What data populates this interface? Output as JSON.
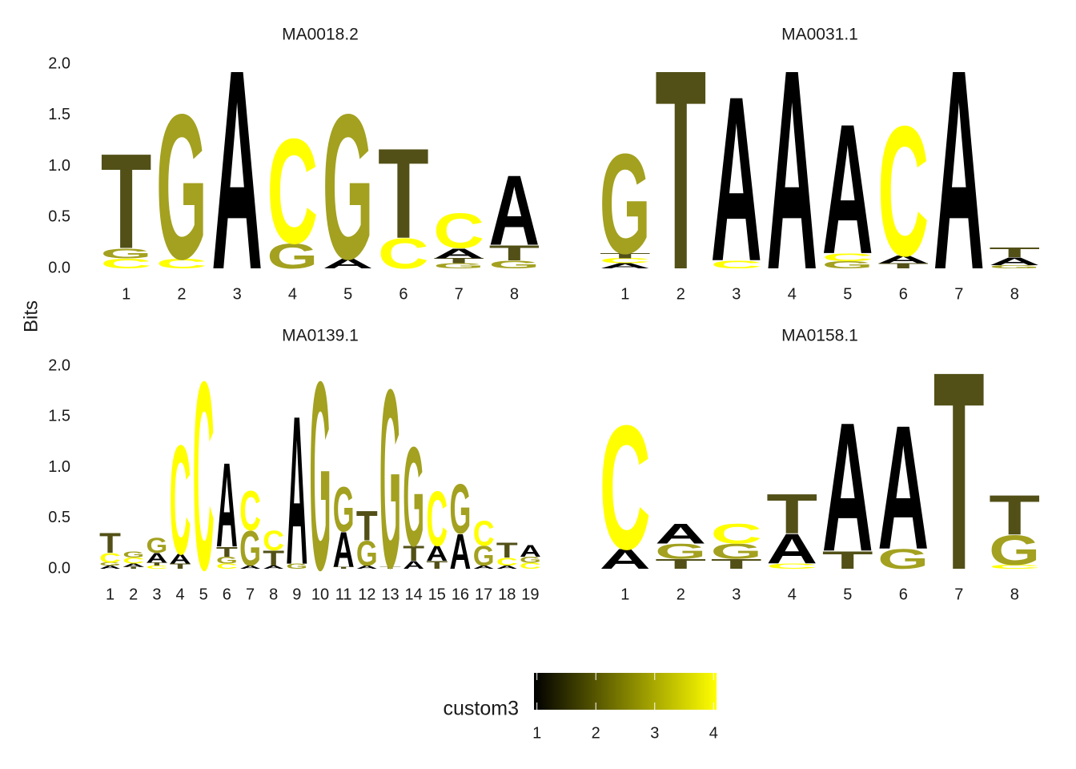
{
  "ylabel": "Bits",
  "legend": {
    "title": "custom3",
    "lim": [
      0.95,
      4.05
    ],
    "ticks": [
      1,
      2,
      3,
      4
    ],
    "colors": [
      "#000000",
      "#ffff00"
    ]
  },
  "chart_data": [
    {
      "type": "logo",
      "title": "MA0018.2",
      "categories": [
        "1",
        "2",
        "3",
        "4",
        "5",
        "6",
        "7",
        "8"
      ],
      "ylim": [
        0,
        2
      ],
      "yticks": [
        {
          "value": 0,
          "label": "0.0"
        },
        {
          "value": 0.5,
          "label": "0.5"
        },
        {
          "value": 1,
          "label": "1.0"
        },
        {
          "value": 1.5,
          "label": "1.5"
        },
        {
          "value": 2,
          "label": "2.0"
        }
      ],
      "series": [
        {
          "name": "A",
          "color": "#000000",
          "values": [
            0,
            0,
            2.0,
            0,
            0.1,
            0,
            0.1,
            0.7
          ]
        },
        {
          "name": "C",
          "color": "#ffff00",
          "values": [
            0.1,
            0.1,
            0,
            1.05,
            0,
            0.3,
            0.35,
            0
          ]
        },
        {
          "name": "G",
          "color": "#a3a11f",
          "values": [
            0.1,
            1.45,
            0,
            0.25,
            1.45,
            0,
            0.05,
            0.08
          ]
        },
        {
          "name": "T",
          "color": "#525017",
          "values": [
            0.95,
            0,
            0,
            0,
            0,
            0.9,
            0.05,
            0.15
          ]
        }
      ]
    },
    {
      "type": "logo",
      "title": "MA0031.1",
      "categories": [
        "1",
        "2",
        "3",
        "4",
        "5",
        "6",
        "7",
        "8"
      ],
      "ylim": [
        0,
        2
      ],
      "series": [
        {
          "name": "A",
          "color": "#000000",
          "values": [
            0.05,
            0,
            1.65,
            2.0,
            1.3,
            0.08,
            2.0,
            0.08
          ]
        },
        {
          "name": "C",
          "color": "#ffff00",
          "values": [
            0.05,
            0,
            0.08,
            0,
            0.08,
            1.3,
            0,
            0
          ]
        },
        {
          "name": "G",
          "color": "#a3a11f",
          "values": [
            1.0,
            0,
            0,
            0,
            0.07,
            0,
            0,
            0.03
          ]
        },
        {
          "name": "T",
          "color": "#525017",
          "values": [
            0.05,
            2.0,
            0,
            0,
            0,
            0.05,
            0,
            0.1
          ]
        }
      ]
    },
    {
      "type": "logo",
      "title": "MA0139.1",
      "categories": [
        "1",
        "2",
        "3",
        "4",
        "5",
        "6",
        "7",
        "8",
        "9",
        "10",
        "11",
        "12",
        "13",
        "14",
        "15",
        "16",
        "17",
        "18",
        "19"
      ],
      "ylim": [
        0,
        2
      ],
      "yticks": [
        {
          "value": 0,
          "label": "0.0"
        },
        {
          "value": 0.5,
          "label": "0.5"
        },
        {
          "value": 1,
          "label": "1.0"
        },
        {
          "value": 1.5,
          "label": "1.5"
        },
        {
          "value": 2,
          "label": "2.0"
        }
      ],
      "series": [
        {
          "name": "A",
          "color": "#000000",
          "values": [
            0.03,
            0.03,
            0.1,
            0.1,
            0,
            0.85,
            0.03,
            0.03,
            1.5,
            0,
            0.35,
            0.03,
            0,
            0.08,
            0.15,
            0.35,
            0.03,
            0.03,
            0.12
          ]
        },
        {
          "name": "C",
          "color": "#ffff00",
          "values": [
            0.1,
            0.06,
            0.03,
            1.1,
            1.9,
            0.05,
            0.4,
            0.2,
            0,
            0,
            0,
            0,
            0,
            0,
            0.55,
            0,
            0.25,
            0.08,
            0.06
          ]
        },
        {
          "name": "G",
          "color": "#a3a11f",
          "values": [
            0.03,
            0.06,
            0.15,
            0,
            0,
            0.07,
            0.35,
            0,
            0.05,
            1.9,
            0.45,
            0.25,
            1.8,
            1.0,
            0,
            0.5,
            0.2,
            0,
            0.06
          ]
        },
        {
          "name": "T",
          "color": "#525017",
          "values": [
            0.2,
            0.02,
            0.03,
            0.05,
            0,
            0.1,
            0,
            0.15,
            0,
            0,
            0.02,
            0.3,
            0.02,
            0.15,
            0.08,
            0,
            0,
            0.15,
            0
          ]
        }
      ]
    },
    {
      "type": "logo",
      "title": "MA0158.1",
      "categories": [
        "1",
        "2",
        "3",
        "4",
        "5",
        "6",
        "7",
        "8"
      ],
      "ylim": [
        0,
        2
      ],
      "series": [
        {
          "name": "A",
          "color": "#000000",
          "values": [
            0.2,
            0.2,
            0,
            0.3,
            1.3,
            1.25,
            0,
            0
          ]
        },
        {
          "name": "C",
          "color": "#ffff00",
          "values": [
            1.25,
            0,
            0.2,
            0.05,
            0,
            0,
            0,
            0.04
          ]
        },
        {
          "name": "G",
          "color": "#a3a11f",
          "values": [
            0,
            0.15,
            0.15,
            0,
            0,
            0.2,
            0,
            0.3
          ]
        },
        {
          "name": "T",
          "color": "#525017",
          "values": [
            0,
            0.1,
            0.1,
            0.4,
            0.18,
            0,
            2.0,
            0.4
          ]
        }
      ]
    }
  ]
}
